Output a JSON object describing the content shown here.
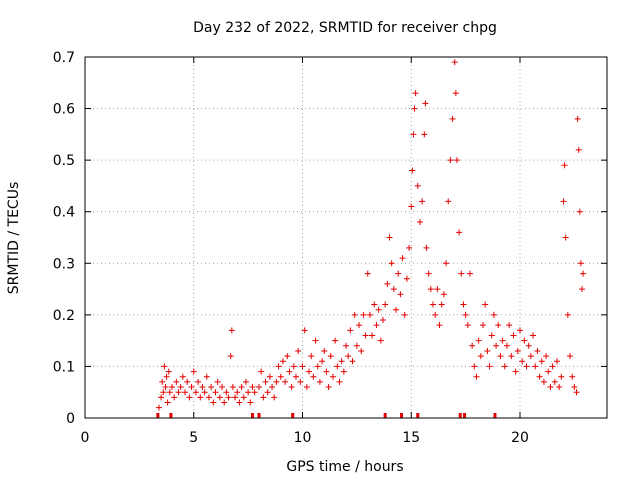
{
  "chart_data": {
    "type": "scatter",
    "title": "Day 232 of 2022, SRMTID for receiver chpg",
    "xlabel": "GPS time / hours",
    "ylabel": "SRMTID / TECUs",
    "xlim": [
      0,
      24
    ],
    "ylim": [
      0,
      0.7
    ],
    "xticks": [
      0,
      5,
      10,
      15,
      20
    ],
    "yticks": [
      0,
      0.1,
      0.2,
      0.3,
      0.4,
      0.5,
      0.6,
      0.7
    ],
    "ytick_labels": [
      "0",
      "0.1",
      "0.2",
      "0.3",
      "0.4",
      "0.5",
      "0.6",
      "0.7"
    ],
    "grid": true,
    "marker": "+",
    "color": "#e60000",
    "series": [
      {
        "name": "SRMTID",
        "points": [
          [
            3.4,
            0.02
          ],
          [
            3.5,
            0.04
          ],
          [
            3.55,
            0.07
          ],
          [
            3.6,
            0.05
          ],
          [
            3.65,
            0.1
          ],
          [
            3.7,
            0.06
          ],
          [
            3.75,
            0.08
          ],
          [
            3.8,
            0.03
          ],
          [
            3.85,
            0.09
          ],
          [
            3.9,
            0.05
          ],
          [
            4.0,
            0.06
          ],
          [
            4.1,
            0.04
          ],
          [
            4.2,
            0.07
          ],
          [
            4.3,
            0.05
          ],
          [
            4.4,
            0.06
          ],
          [
            4.5,
            0.08
          ],
          [
            4.6,
            0.05
          ],
          [
            4.7,
            0.07
          ],
          [
            4.8,
            0.04
          ],
          [
            4.9,
            0.06
          ],
          [
            5.0,
            0.09
          ],
          [
            5.1,
            0.05
          ],
          [
            5.2,
            0.07
          ],
          [
            5.3,
            0.04
          ],
          [
            5.4,
            0.06
          ],
          [
            5.5,
            0.05
          ],
          [
            5.6,
            0.08
          ],
          [
            5.7,
            0.04
          ],
          [
            5.8,
            0.06
          ],
          [
            5.9,
            0.03
          ],
          [
            6.0,
            0.05
          ],
          [
            6.1,
            0.07
          ],
          [
            6.2,
            0.04
          ],
          [
            6.3,
            0.06
          ],
          [
            6.4,
            0.03
          ],
          [
            6.5,
            0.05
          ],
          [
            6.6,
            0.04
          ],
          [
            6.7,
            0.12
          ],
          [
            6.75,
            0.17
          ],
          [
            6.8,
            0.06
          ],
          [
            6.9,
            0.04
          ],
          [
            7.0,
            0.05
          ],
          [
            7.1,
            0.03
          ],
          [
            7.2,
            0.06
          ],
          [
            7.3,
            0.04
          ],
          [
            7.4,
            0.07
          ],
          [
            7.5,
            0.05
          ],
          [
            7.6,
            0.03
          ],
          [
            7.7,
            0.06
          ],
          [
            7.8,
            0.05
          ],
          [
            8.0,
            0.06
          ],
          [
            8.1,
            0.09
          ],
          [
            8.2,
            0.04
          ],
          [
            8.3,
            0.07
          ],
          [
            8.4,
            0.05
          ],
          [
            8.5,
            0.08
          ],
          [
            8.6,
            0.06
          ],
          [
            8.7,
            0.04
          ],
          [
            8.8,
            0.07
          ],
          [
            8.9,
            0.1
          ],
          [
            9.0,
            0.08
          ],
          [
            9.1,
            0.11
          ],
          [
            9.2,
            0.07
          ],
          [
            9.3,
            0.12
          ],
          [
            9.4,
            0.09
          ],
          [
            9.5,
            0.06
          ],
          [
            9.6,
            0.1
          ],
          [
            9.7,
            0.08
          ],
          [
            9.8,
            0.13
          ],
          [
            9.9,
            0.07
          ],
          [
            10.0,
            0.1
          ],
          [
            10.1,
            0.17
          ],
          [
            10.2,
            0.06
          ],
          [
            10.3,
            0.09
          ],
          [
            10.4,
            0.12
          ],
          [
            10.5,
            0.08
          ],
          [
            10.6,
            0.15
          ],
          [
            10.7,
            0.1
          ],
          [
            10.8,
            0.07
          ],
          [
            10.9,
            0.11
          ],
          [
            11.0,
            0.13
          ],
          [
            11.1,
            0.09
          ],
          [
            11.2,
            0.06
          ],
          [
            11.3,
            0.12
          ],
          [
            11.4,
            0.08
          ],
          [
            11.5,
            0.15
          ],
          [
            11.6,
            0.1
          ],
          [
            11.7,
            0.07
          ],
          [
            11.8,
            0.11
          ],
          [
            11.9,
            0.09
          ],
          [
            12.0,
            0.14
          ],
          [
            12.1,
            0.12
          ],
          [
            12.2,
            0.17
          ],
          [
            12.3,
            0.11
          ],
          [
            12.4,
            0.2
          ],
          [
            12.5,
            0.14
          ],
          [
            12.6,
            0.18
          ],
          [
            12.7,
            0.13
          ],
          [
            12.8,
            0.2
          ],
          [
            12.9,
            0.16
          ],
          [
            13.0,
            0.28
          ],
          [
            13.1,
            0.2
          ],
          [
            13.2,
            0.16
          ],
          [
            13.3,
            0.22
          ],
          [
            13.4,
            0.18
          ],
          [
            13.5,
            0.21
          ],
          [
            13.6,
            0.15
          ],
          [
            13.7,
            0.19
          ],
          [
            13.8,
            0.22
          ],
          [
            13.9,
            0.26
          ],
          [
            14.0,
            0.35
          ],
          [
            14.1,
            0.3
          ],
          [
            14.2,
            0.25
          ],
          [
            14.3,
            0.21
          ],
          [
            14.4,
            0.28
          ],
          [
            14.5,
            0.24
          ],
          [
            14.6,
            0.31
          ],
          [
            14.7,
            0.2
          ],
          [
            14.8,
            0.27
          ],
          [
            14.9,
            0.33
          ],
          [
            15.0,
            0.41
          ],
          [
            15.05,
            0.48
          ],
          [
            15.1,
            0.55
          ],
          [
            15.15,
            0.6
          ],
          [
            15.2,
            0.63
          ],
          [
            15.3,
            0.45
          ],
          [
            15.4,
            0.38
          ],
          [
            15.5,
            0.42
          ],
          [
            15.6,
            0.55
          ],
          [
            15.65,
            0.61
          ],
          [
            15.7,
            0.33
          ],
          [
            15.8,
            0.28
          ],
          [
            15.9,
            0.25
          ],
          [
            16.0,
            0.22
          ],
          [
            16.1,
            0.2
          ],
          [
            16.2,
            0.25
          ],
          [
            16.3,
            0.18
          ],
          [
            16.4,
            0.22
          ],
          [
            16.5,
            0.24
          ],
          [
            16.6,
            0.3
          ],
          [
            16.7,
            0.42
          ],
          [
            16.8,
            0.5
          ],
          [
            16.9,
            0.58
          ],
          [
            17.0,
            0.69
          ],
          [
            17.05,
            0.63
          ],
          [
            17.1,
            0.5
          ],
          [
            17.2,
            0.36
          ],
          [
            17.3,
            0.28
          ],
          [
            17.4,
            0.22
          ],
          [
            17.5,
            0.2
          ],
          [
            17.6,
            0.18
          ],
          [
            17.7,
            0.28
          ],
          [
            17.8,
            0.14
          ],
          [
            17.9,
            0.1
          ],
          [
            18.0,
            0.08
          ],
          [
            18.1,
            0.15
          ],
          [
            18.2,
            0.12
          ],
          [
            18.3,
            0.18
          ],
          [
            18.4,
            0.22
          ],
          [
            18.5,
            0.13
          ],
          [
            18.6,
            0.1
          ],
          [
            18.7,
            0.16
          ],
          [
            18.8,
            0.2
          ],
          [
            18.9,
            0.14
          ],
          [
            19.0,
            0.18
          ],
          [
            19.1,
            0.12
          ],
          [
            19.2,
            0.15
          ],
          [
            19.3,
            0.1
          ],
          [
            19.4,
            0.14
          ],
          [
            19.5,
            0.18
          ],
          [
            19.6,
            0.12
          ],
          [
            19.7,
            0.16
          ],
          [
            19.8,
            0.09
          ],
          [
            19.9,
            0.13
          ],
          [
            20.0,
            0.17
          ],
          [
            20.1,
            0.11
          ],
          [
            20.2,
            0.15
          ],
          [
            20.3,
            0.1
          ],
          [
            20.4,
            0.14
          ],
          [
            20.5,
            0.12
          ],
          [
            20.6,
            0.16
          ],
          [
            20.7,
            0.1
          ],
          [
            20.8,
            0.13
          ],
          [
            20.9,
            0.08
          ],
          [
            21.0,
            0.11
          ],
          [
            21.1,
            0.07
          ],
          [
            21.2,
            0.12
          ],
          [
            21.3,
            0.09
          ],
          [
            21.4,
            0.06
          ],
          [
            21.5,
            0.1
          ],
          [
            21.6,
            0.07
          ],
          [
            21.7,
            0.11
          ],
          [
            21.8,
            0.06
          ],
          [
            21.9,
            0.08
          ],
          [
            22.0,
            0.42
          ],
          [
            22.05,
            0.49
          ],
          [
            22.1,
            0.35
          ],
          [
            22.2,
            0.2
          ],
          [
            22.3,
            0.12
          ],
          [
            22.4,
            0.08
          ],
          [
            22.5,
            0.06
          ],
          [
            22.6,
            0.05
          ],
          [
            22.65,
            0.58
          ],
          [
            22.7,
            0.52
          ],
          [
            22.75,
            0.4
          ],
          [
            22.8,
            0.3
          ],
          [
            22.85,
            0.25
          ],
          [
            22.9,
            0.28
          ]
        ]
      }
    ],
    "rug_marks_x": [
      3.35,
      3.95,
      7.7,
      8.0,
      9.55,
      13.8,
      14.55,
      15.3,
      17.25,
      17.45,
      18.85
    ]
  }
}
